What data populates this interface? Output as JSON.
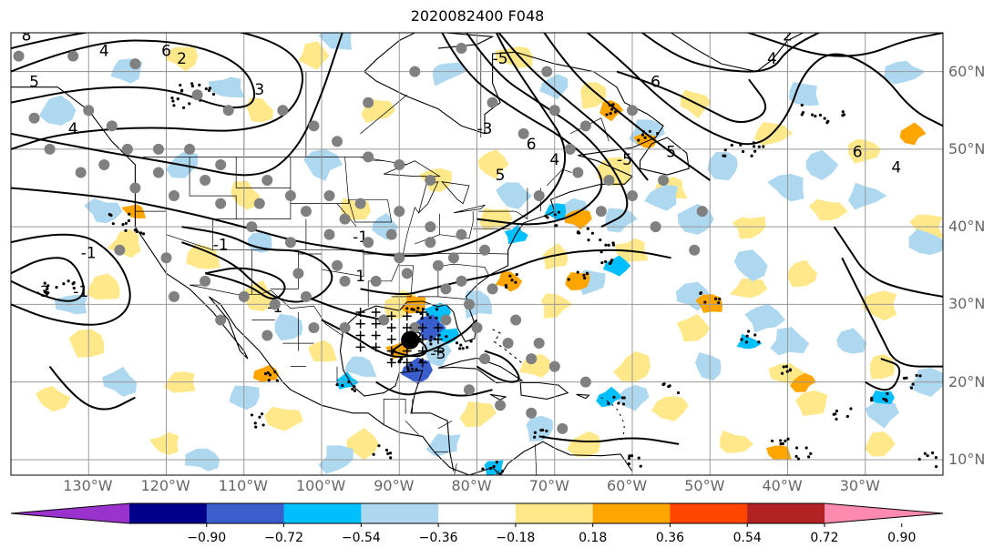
{
  "title": "2020082400 F048",
  "map": {
    "lon_range": [
      -140,
      -20
    ],
    "lat_range": [
      8,
      65
    ],
    "lon_ticks": [
      -130,
      -120,
      -110,
      -100,
      -90,
      -80,
      -70,
      -60,
      -50,
      -40,
      -30
    ],
    "lon_labels": [
      "130°W",
      "120°W",
      "110°W",
      "100°W",
      "90°W",
      "80°W",
      "70°W",
      "60°W",
      "50°W",
      "40°W",
      "30°W"
    ],
    "lat_ticks": [
      10,
      20,
      30,
      40,
      50,
      60
    ],
    "lat_labels": [
      "10°N",
      "20°N",
      "30°N",
      "40°N",
      "50°N",
      "60°N"
    ],
    "grid": true,
    "contour_labels": [
      "8",
      "4",
      "6",
      "2",
      "5",
      "4",
      "3",
      "-1",
      "-1",
      "-1",
      "-3",
      "-1",
      "-3",
      "6",
      "4",
      "5",
      "-3",
      "5",
      "6",
      "6",
      "4",
      "2",
      "4",
      "-5",
      "-1",
      "-5",
      "-3",
      "1"
    ],
    "storm_center": {
      "lon": -88.6,
      "lat": 25.4
    }
  },
  "colorbar": {
    "colors": [
      "#9a32cd",
      "#00008b",
      "#3a5fcd",
      "#00bfff",
      "#add8f0",
      "#ffffff",
      "#ffe88a",
      "#ffa500",
      "#ff4500",
      "#b22222",
      "#ff8ab0"
    ],
    "tick_labels": [
      "−0.90",
      "−0.72",
      "−0.54",
      "−0.36",
      "−0.18",
      "0.18",
      "0.36",
      "0.54",
      "0.72",
      "0.90"
    ],
    "extend": "both"
  },
  "colors": {
    "land_outline": "#000000",
    "gray_dots": "#808080",
    "axis_labels": "#666666",
    "grid": "#999999"
  }
}
